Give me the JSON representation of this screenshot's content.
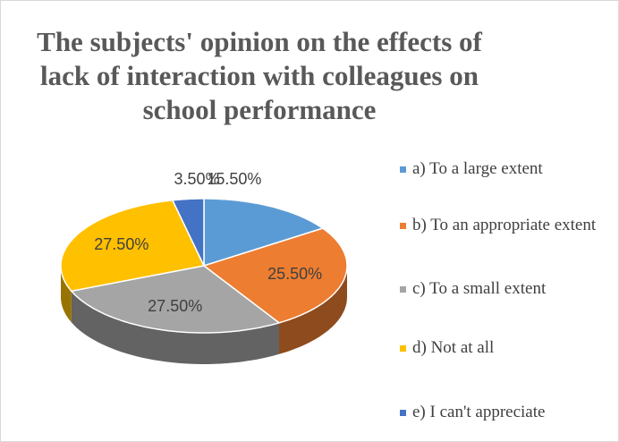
{
  "chart_data": {
    "type": "pie3d",
    "title": "The subjects' opinion on the effects of lack of interaction with colleagues on school performance",
    "categories": [
      "a) To a large extent",
      "b) To an appropriate extent",
      "c) To a small extent",
      "d) Not at all",
      "e) I can't appreciate"
    ],
    "values": [
      15.5,
      25.5,
      27.5,
      27.5,
      3.5
    ],
    "value_labels": [
      "15.50%",
      "25.50%",
      "27.50%",
      "27.50%",
      "3.50%"
    ],
    "colors": [
      "#5b9bd5",
      "#ed7d31",
      "#a5a5a5",
      "#ffc000",
      "#4472c4"
    ],
    "legend": "right"
  }
}
